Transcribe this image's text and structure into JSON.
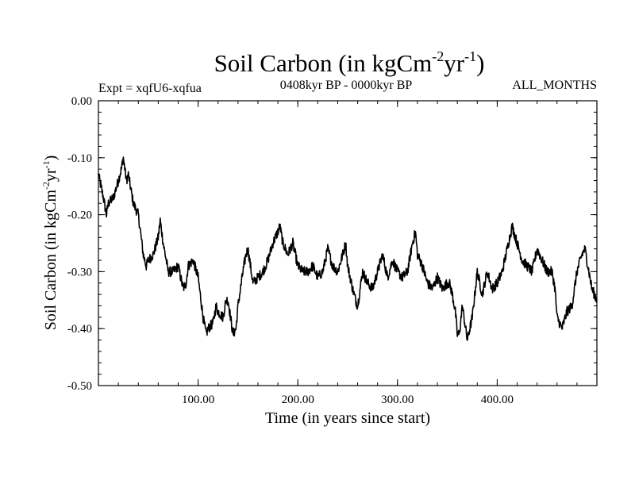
{
  "chart_data": {
    "type": "line",
    "title": {
      "base": "Soil Carbon (in kgCm",
      "exp1": "-2",
      "mid": "yr",
      "exp2": "-1",
      "end": ")"
    },
    "subtitle_left": "Expt = xqfU6-xqfua",
    "subtitle_center": "0408kyr BP - 0000kyr BP",
    "subtitle_right": "ALL_MONTHS",
    "xlabel": "Time (in years since start)",
    "ylabel": {
      "base": "Soil Carbon (in kgCm",
      "exp1": "-2",
      "mid": "yr",
      "exp2": "-1",
      "end": ")"
    },
    "xlim": [
      0,
      500
    ],
    "ylim": [
      -0.5,
      0.0
    ],
    "xticks": [
      {
        "value": 100,
        "label": "100.00"
      },
      {
        "value": 200,
        "label": "200.00"
      },
      {
        "value": 300,
        "label": "300.00"
      },
      {
        "value": 400,
        "label": "400.00"
      }
    ],
    "yticks": [
      {
        "value": 0.0,
        "label": "0.00"
      },
      {
        "value": -0.1,
        "label": "-0.10"
      },
      {
        "value": -0.2,
        "label": "-0.20"
      },
      {
        "value": -0.3,
        "label": "-0.30"
      },
      {
        "value": -0.4,
        "label": "-0.40"
      },
      {
        "value": -0.5,
        "label": "-0.50"
      }
    ],
    "series": [
      {
        "name": "Soil Carbon",
        "color": "#000000",
        "x": [
          0,
          5,
          8,
          10,
          15,
          20,
          23,
          25,
          28,
          30,
          35,
          40,
          45,
          48,
          50,
          55,
          60,
          62,
          65,
          70,
          75,
          80,
          85,
          88,
          90,
          95,
          100,
          105,
          108,
          110,
          115,
          118,
          120,
          125,
          128,
          130,
          135,
          138,
          140,
          145,
          148,
          150,
          155,
          160,
          165,
          170,
          175,
          180,
          182,
          185,
          190,
          195,
          200,
          205,
          210,
          215,
          220,
          225,
          230,
          235,
          240,
          245,
          248,
          250,
          255,
          258,
          260,
          265,
          270,
          275,
          280,
          285,
          290,
          295,
          300,
          305,
          310,
          315,
          318,
          320,
          325,
          330,
          335,
          340,
          345,
          350,
          352,
          355,
          358,
          360,
          362,
          365,
          370,
          375,
          380,
          385,
          390,
          395,
          400,
          405,
          410,
          415,
          420,
          425,
          430,
          435,
          440,
          445,
          450,
          455,
          458,
          460,
          465,
          470,
          475,
          480,
          485,
          488,
          490,
          495,
          500
        ],
        "values": [
          -0.13,
          -0.17,
          -0.2,
          -0.18,
          -0.17,
          -0.14,
          -0.12,
          -0.1,
          -0.14,
          -0.13,
          -0.18,
          -0.2,
          -0.27,
          -0.29,
          -0.28,
          -0.27,
          -0.24,
          -0.21,
          -0.25,
          -0.3,
          -0.3,
          -0.29,
          -0.33,
          -0.32,
          -0.29,
          -0.28,
          -0.31,
          -0.38,
          -0.41,
          -0.4,
          -0.39,
          -0.36,
          -0.37,
          -0.38,
          -0.35,
          -0.35,
          -0.41,
          -0.4,
          -0.36,
          -0.3,
          -0.27,
          -0.26,
          -0.32,
          -0.31,
          -0.3,
          -0.28,
          -0.25,
          -0.23,
          -0.22,
          -0.25,
          -0.27,
          -0.25,
          -0.29,
          -0.3,
          -0.3,
          -0.29,
          -0.31,
          -0.3,
          -0.26,
          -0.29,
          -0.3,
          -0.27,
          -0.25,
          -0.29,
          -0.33,
          -0.35,
          -0.36,
          -0.3,
          -0.32,
          -0.33,
          -0.3,
          -0.27,
          -0.31,
          -0.28,
          -0.3,
          -0.31,
          -0.3,
          -0.25,
          -0.23,
          -0.27,
          -0.29,
          -0.32,
          -0.33,
          -0.31,
          -0.33,
          -0.32,
          -0.32,
          -0.34,
          -0.37,
          -0.41,
          -0.41,
          -0.36,
          -0.42,
          -0.38,
          -0.3,
          -0.34,
          -0.3,
          -0.33,
          -0.32,
          -0.3,
          -0.26,
          -0.22,
          -0.25,
          -0.28,
          -0.29,
          -0.3,
          -0.26,
          -0.28,
          -0.3,
          -0.3,
          -0.33,
          -0.38,
          -0.4,
          -0.37,
          -0.36,
          -0.3,
          -0.27,
          -0.26,
          -0.28,
          -0.33,
          -0.35
        ]
      }
    ]
  }
}
